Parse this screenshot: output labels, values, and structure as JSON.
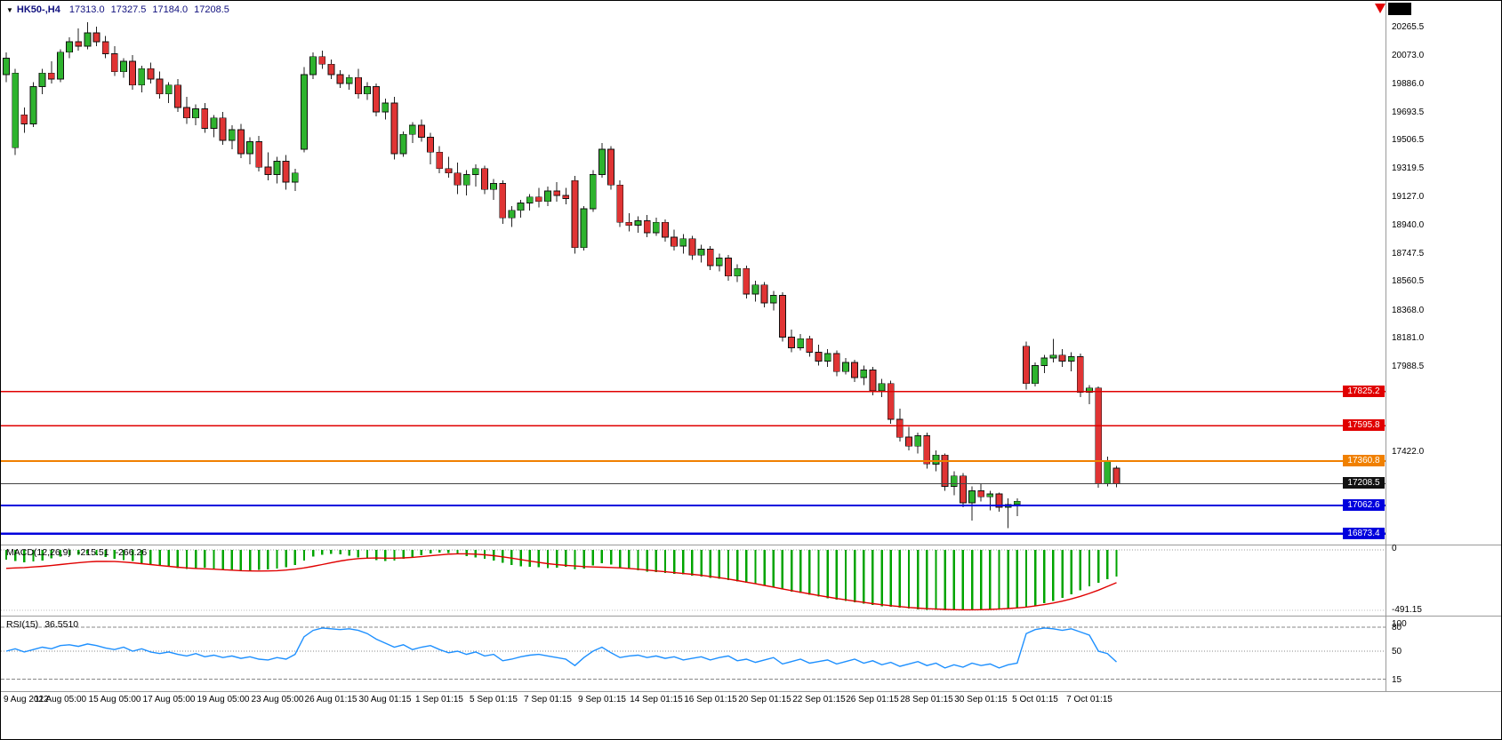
{
  "header": {
    "dropdown_icon": "▼",
    "symbol": "HK50-,H4",
    "ohlc": {
      "open": "17313.0",
      "high": "17327.5",
      "low": "17184.0",
      "close": "17208.5"
    }
  },
  "chart_data": {
    "type": "candlestick",
    "symbol": "HK50-,H4",
    "timeframe": "H4",
    "title": "HK50-,H4 17313.0 17327.5 17184.0 17208.5",
    "ohlc_current": {
      "open": 17313.0,
      "high": 17327.5,
      "low": 17184.0,
      "close": 17208.5
    },
    "price_axis": {
      "visible_labels": [
        "20265.5",
        "20073.0",
        "19886.0",
        "19693.5",
        "19506.5",
        "19319.5",
        "19127.0",
        "18940.0",
        "18747.5",
        "18560.5",
        "18368.0",
        "18181.0",
        "17988.5",
        "17422.0"
      ]
    },
    "horizontal_lines": [
      {
        "price": 17825.2,
        "label": "17825.2",
        "color": "#e00000",
        "width": 1.5
      },
      {
        "price": 17595.8,
        "label": "17595.8",
        "color": "#e00000",
        "width": 1.5
      },
      {
        "price": 17360.8,
        "label": "17360.8",
        "color": "#f08000",
        "width": 2
      },
      {
        "price": 17208.5,
        "label": "17208.5",
        "color": "#444444",
        "width": 1,
        "tag_bg": "#111111"
      },
      {
        "price": 17062.6,
        "label": "17062.6",
        "color": "#0000dd",
        "width": 2
      },
      {
        "price": 16873.4,
        "label": "16873.4",
        "color": "#0000dd",
        "width": 2.5
      }
    ],
    "time_axis": {
      "candles_per_label": 6,
      "labels": [
        "9 Aug 2022",
        "11 Aug 05:00",
        "15 Aug 05:00",
        "17 Aug 05:00",
        "19 Aug 05:00",
        "23 Aug 05:00",
        "26 Aug 01:15",
        "30 Aug 01:15",
        "1 Sep 01:15",
        "5 Sep 01:15",
        "7 Sep 01:15",
        "9 Sep 01:15",
        "14 Sep 01:15",
        "16 Sep 01:15",
        "20 Sep 01:15",
        "22 Sep 01:15",
        "26 Sep 01:15",
        "28 Sep 01:15",
        "30 Sep 01:15",
        "5 Oct 01:15",
        "7 Oct 01:15"
      ]
    },
    "candles": [
      [
        19950,
        20100,
        19900,
        20060
      ],
      [
        19460,
        19990,
        19410,
        19960
      ],
      [
        19680,
        19730,
        19560,
        19620
      ],
      [
        19620,
        19900,
        19600,
        19870
      ],
      [
        19870,
        19990,
        19820,
        19960
      ],
      [
        19960,
        20040,
        19890,
        19920
      ],
      [
        19920,
        20120,
        19900,
        20100
      ],
      [
        20100,
        20200,
        20060,
        20170
      ],
      [
        20170,
        20260,
        20110,
        20140
      ],
      [
        20140,
        20300,
        20120,
        20230
      ],
      [
        20230,
        20270,
        20140,
        20170
      ],
      [
        20170,
        20210,
        20060,
        20090
      ],
      [
        20090,
        20140,
        19940,
        19970
      ],
      [
        19970,
        20060,
        19930,
        20040
      ],
      [
        20040,
        20080,
        19850,
        19880
      ],
      [
        19880,
        20010,
        19830,
        19990
      ],
      [
        19990,
        20030,
        19890,
        19920
      ],
      [
        19920,
        19970,
        19790,
        19820
      ],
      [
        19820,
        19900,
        19760,
        19880
      ],
      [
        19880,
        19920,
        19700,
        19730
      ],
      [
        19730,
        19800,
        19620,
        19660
      ],
      [
        19660,
        19750,
        19610,
        19720
      ],
      [
        19720,
        19760,
        19560,
        19590
      ],
      [
        19590,
        19680,
        19530,
        19660
      ],
      [
        19660,
        19700,
        19480,
        19510
      ],
      [
        19510,
        19610,
        19450,
        19580
      ],
      [
        19580,
        19620,
        19390,
        19420
      ],
      [
        19420,
        19530,
        19350,
        19500
      ],
      [
        19500,
        19540,
        19300,
        19330
      ],
      [
        19330,
        19430,
        19240,
        19280
      ],
      [
        19280,
        19400,
        19220,
        19370
      ],
      [
        19370,
        19410,
        19180,
        19230
      ],
      [
        19230,
        19320,
        19170,
        19290
      ],
      [
        19450,
        20000,
        19430,
        19950
      ],
      [
        19950,
        20100,
        19920,
        20070
      ],
      [
        20070,
        20110,
        19990,
        20020
      ],
      [
        20020,
        20050,
        19920,
        19950
      ],
      [
        19950,
        19980,
        19860,
        19890
      ],
      [
        19890,
        19950,
        19850,
        19930
      ],
      [
        19930,
        19990,
        19790,
        19820
      ],
      [
        19820,
        19900,
        19780,
        19870
      ],
      [
        19870,
        19890,
        19670,
        19700
      ],
      [
        19700,
        19790,
        19650,
        19760
      ],
      [
        19760,
        19800,
        19380,
        19420
      ],
      [
        19420,
        19570,
        19400,
        19550
      ],
      [
        19550,
        19630,
        19490,
        19610
      ],
      [
        19610,
        19650,
        19500,
        19530
      ],
      [
        19530,
        19560,
        19350,
        19430
      ],
      [
        19430,
        19470,
        19290,
        19320
      ],
      [
        19320,
        19400,
        19260,
        19290
      ],
      [
        19290,
        19360,
        19150,
        19210
      ],
      [
        19210,
        19310,
        19140,
        19280
      ],
      [
        19280,
        19350,
        19200,
        19320
      ],
      [
        19320,
        19340,
        19150,
        19180
      ],
      [
        19180,
        19250,
        19110,
        19220
      ],
      [
        19220,
        19240,
        18950,
        18990
      ],
      [
        18990,
        19070,
        18930,
        19040
      ],
      [
        19040,
        19110,
        18990,
        19090
      ],
      [
        19090,
        19150,
        19040,
        19130
      ],
      [
        19130,
        19190,
        19060,
        19100
      ],
      [
        19100,
        19200,
        19070,
        19170
      ],
      [
        19170,
        19230,
        19100,
        19140
      ],
      [
        19140,
        19190,
        19080,
        19120
      ],
      [
        19240,
        19270,
        18750,
        18790
      ],
      [
        18790,
        19070,
        18770,
        19050
      ],
      [
        19050,
        19310,
        19030,
        19280
      ],
      [
        19280,
        19490,
        19260,
        19450
      ],
      [
        19450,
        19470,
        19180,
        19210
      ],
      [
        19210,
        19240,
        18930,
        18960
      ],
      [
        18960,
        19020,
        18900,
        18940
      ],
      [
        18940,
        19000,
        18890,
        18970
      ],
      [
        18970,
        19010,
        18860,
        18890
      ],
      [
        18890,
        18990,
        18870,
        18960
      ],
      [
        18960,
        18980,
        18830,
        18860
      ],
      [
        18860,
        18910,
        18770,
        18800
      ],
      [
        18800,
        18880,
        18750,
        18850
      ],
      [
        18850,
        18870,
        18710,
        18740
      ],
      [
        18740,
        18810,
        18690,
        18780
      ],
      [
        18780,
        18800,
        18640,
        18670
      ],
      [
        18670,
        18750,
        18630,
        18720
      ],
      [
        18720,
        18740,
        18570,
        18600
      ],
      [
        18600,
        18680,
        18560,
        18650
      ],
      [
        18650,
        18670,
        18450,
        18480
      ],
      [
        18480,
        18570,
        18430,
        18540
      ],
      [
        18540,
        18560,
        18390,
        18420
      ],
      [
        18420,
        18500,
        18370,
        18470
      ],
      [
        18470,
        18490,
        18160,
        18190
      ],
      [
        18190,
        18240,
        18090,
        18120
      ],
      [
        18120,
        18210,
        18100,
        18180
      ],
      [
        18180,
        18200,
        18060,
        18090
      ],
      [
        18090,
        18140,
        18000,
        18030
      ],
      [
        18030,
        18110,
        17990,
        18080
      ],
      [
        18080,
        18100,
        17930,
        17960
      ],
      [
        17960,
        18050,
        17940,
        18020
      ],
      [
        18020,
        18040,
        17890,
        17920
      ],
      [
        17920,
        18000,
        17870,
        17970
      ],
      [
        17970,
        17990,
        17800,
        17830
      ],
      [
        17830,
        17910,
        17790,
        17880
      ],
      [
        17880,
        17900,
        17610,
        17640
      ],
      [
        17640,
        17710,
        17490,
        17520
      ],
      [
        17520,
        17590,
        17430,
        17460
      ],
      [
        17460,
        17550,
        17410,
        17530
      ],
      [
        17530,
        17550,
        17310,
        17340
      ],
      [
        17340,
        17430,
        17290,
        17400
      ],
      [
        17400,
        17410,
        17160,
        17190
      ],
      [
        17190,
        17290,
        17130,
        17260
      ],
      [
        17260,
        17280,
        17050,
        17080
      ],
      [
        17080,
        17190,
        16960,
        17160
      ],
      [
        17160,
        17210,
        17090,
        17120
      ],
      [
        17120,
        17160,
        17030,
        17140
      ],
      [
        17140,
        17150,
        17020,
        17050
      ],
      [
        17050,
        17110,
        16910,
        17070
      ],
      [
        17070,
        17110,
        16990,
        17090
      ],
      [
        18130,
        18160,
        17840,
        17880
      ],
      [
        17880,
        18020,
        17860,
        18000
      ],
      [
        18000,
        18070,
        17950,
        18050
      ],
      [
        18050,
        18180,
        18020,
        18070
      ],
      [
        18070,
        18110,
        17990,
        18030
      ],
      [
        18030,
        18090,
        17960,
        18060
      ],
      [
        18060,
        18080,
        17790,
        17820
      ],
      [
        17820,
        17870,
        17740,
        17850
      ],
      [
        17850,
        17860,
        17180,
        17210
      ],
      [
        17210,
        17390,
        17190,
        17360
      ],
      [
        17313.0,
        17327.5,
        17184.0,
        17208.5
      ]
    ],
    "macd": {
      "label": "MACD(12,26,9)",
      "value_main": "-215.51",
      "value_signal": "-266.26",
      "scale": {
        "zero_label": "0",
        "min_label": "-491.15",
        "min": -491.15
      },
      "hist": [
        -80,
        -90,
        -100,
        -95,
        -85,
        -70,
        -55,
        -45,
        -38,
        -34,
        -44,
        -58,
        -72,
        -82,
        -92,
        -108,
        -118,
        -128,
        -138,
        -148,
        -154,
        -150,
        -146,
        -150,
        -158,
        -168,
        -174,
        -170,
        -164,
        -158,
        -150,
        -142,
        -122,
        -85,
        -55,
        -38,
        -32,
        -36,
        -46,
        -60,
        -72,
        -82,
        -90,
        -86,
        -74,
        -60,
        -45,
        -30,
        -22,
        -26,
        -36,
        -50,
        -62,
        -74,
        -88,
        -106,
        -122,
        -132,
        -138,
        -142,
        -148,
        -144,
        -138,
        -158,
        -150,
        -128,
        -108,
        -118,
        -140,
        -156,
        -166,
        -176,
        -182,
        -188,
        -194,
        -200,
        -208,
        -218,
        -226,
        -234,
        -244,
        -256,
        -266,
        -278,
        -288,
        -300,
        -322,
        -338,
        -352,
        -366,
        -380,
        -394,
        -406,
        -416,
        -426,
        -436,
        -448,
        -458,
        -464,
        -470,
        -477,
        -483,
        -487,
        -489,
        -491,
        -491,
        -490,
        -488,
        -486,
        -483,
        -480,
        -476,
        -470,
        -462,
        -450,
        -435,
        -415,
        -390,
        -362,
        -330,
        -298,
        -268,
        -240,
        -215.51
      ],
      "signal": [
        -150,
        -147,
        -144,
        -139,
        -134,
        -127,
        -119,
        -111,
        -104,
        -98,
        -94,
        -93,
        -95,
        -99,
        -105,
        -112,
        -119,
        -127,
        -134,
        -141,
        -147,
        -151,
        -154,
        -157,
        -161,
        -165,
        -169,
        -171,
        -172,
        -171,
        -169,
        -164,
        -157,
        -147,
        -134,
        -119,
        -104,
        -90,
        -79,
        -71,
        -67,
        -66,
        -67,
        -67,
        -65,
        -61,
        -55,
        -48,
        -41,
        -35,
        -32,
        -32,
        -35,
        -40,
        -47,
        -56,
        -67,
        -79,
        -91,
        -102,
        -112,
        -120,
        -126,
        -131,
        -136,
        -139,
        -141,
        -143,
        -146,
        -151,
        -157,
        -164,
        -171,
        -178,
        -185,
        -192,
        -199,
        -207,
        -216,
        -226,
        -237,
        -249,
        -262,
        -275,
        -289,
        -303,
        -317,
        -331,
        -345,
        -358,
        -371,
        -383,
        -395,
        -406,
        -417,
        -427,
        -437,
        -446,
        -454,
        -461,
        -468,
        -473,
        -478,
        -481,
        -484,
        -486,
        -487,
        -487,
        -486,
        -484,
        -481,
        -477,
        -472,
        -465,
        -456,
        -445,
        -432,
        -417,
        -399,
        -378,
        -354,
        -327,
        -297,
        -266.26
      ]
    },
    "rsi": {
      "label": "RSI(15)",
      "value": "36.5510",
      "levels": [
        {
          "value": 100,
          "label": "100",
          "line": "none"
        },
        {
          "value": 80,
          "label": "80",
          "line": "dashed"
        },
        {
          "value": 50,
          "label": "50",
          "line": "dotted"
        },
        {
          "value": 15,
          "label": "15",
          "line": "dashed"
        }
      ],
      "values": [
        50,
        53,
        49,
        52,
        55,
        53,
        57,
        58,
        56,
        59,
        57,
        54,
        52,
        55,
        50,
        53,
        49,
        47,
        49,
        46,
        44,
        47,
        43,
        45,
        42,
        44,
        41,
        43,
        40,
        39,
        42,
        40,
        46,
        68,
        76,
        79,
        78,
        77,
        78,
        76,
        72,
        65,
        60,
        55,
        58,
        52,
        55,
        57,
        52,
        48,
        50,
        46,
        49,
        44,
        46,
        38,
        40,
        43,
        45,
        46,
        44,
        42,
        40,
        32,
        42,
        50,
        55,
        48,
        42,
        44,
        45,
        42,
        44,
        41,
        43,
        39,
        41,
        43,
        39,
        42,
        44,
        38,
        40,
        36,
        39,
        42,
        34,
        37,
        40,
        35,
        37,
        39,
        34,
        37,
        40,
        35,
        38,
        33,
        36,
        31,
        34,
        37,
        32,
        35,
        29,
        33,
        30,
        35,
        32,
        34,
        29,
        33,
        35,
        72,
        77,
        79,
        78,
        76,
        78,
        74,
        70,
        50,
        47,
        36.55
      ]
    },
    "colors": {
      "up": "#2eb32e",
      "down": "#e03434",
      "wick": "#222222",
      "candle_border": "#111111",
      "macd_hist": "#00a400",
      "macd_signal": "#e00000",
      "rsi_line": "#1e90ff"
    }
  }
}
